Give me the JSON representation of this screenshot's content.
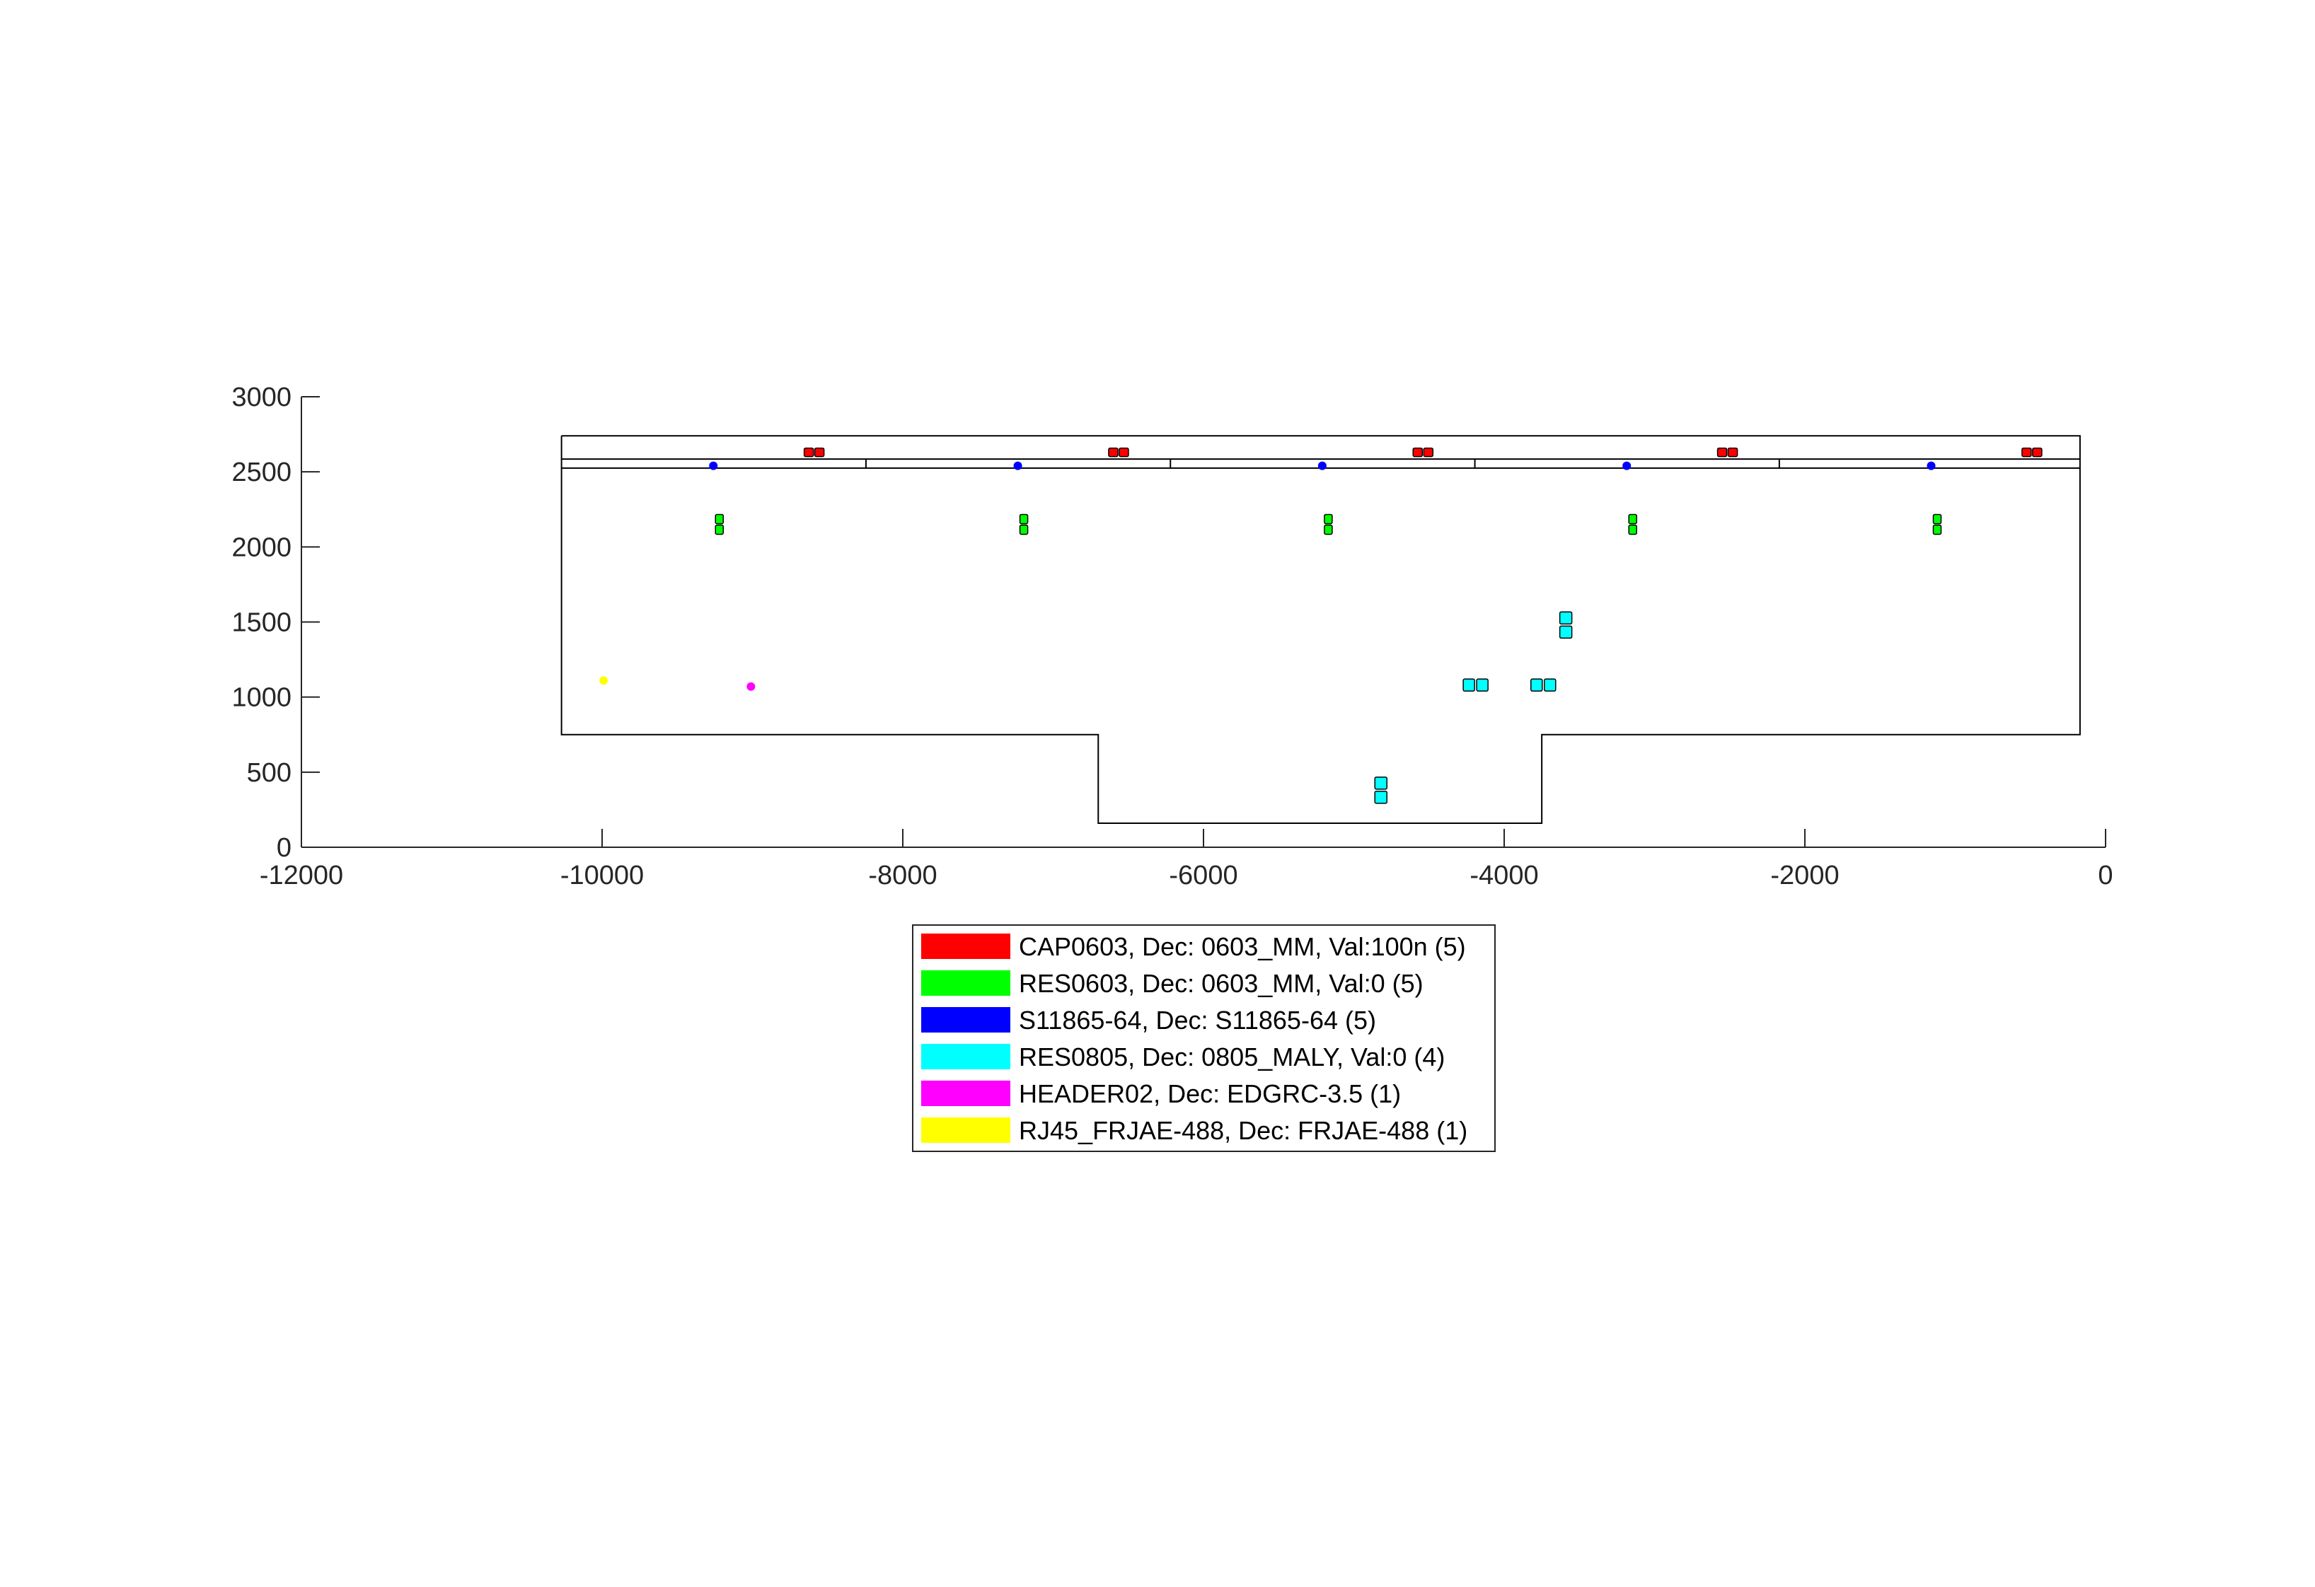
{
  "chart_data": {
    "type": "scatter",
    "title": "",
    "xlabel": "",
    "ylabel": "",
    "xlim": [
      -12000,
      0
    ],
    "ylim": [
      0,
      3000
    ],
    "xticks": [
      -12000,
      -10000,
      -8000,
      -6000,
      -4000,
      -2000,
      0
    ],
    "xtick_labels": [
      "-12000",
      "-10000",
      "-8000",
      "-6000",
      "-4000",
      "-2000",
      "0"
    ],
    "yticks": [
      0,
      500,
      1000,
      1500,
      2000,
      2500,
      3000
    ],
    "ytick_labels": [
      "0",
      "500",
      "1000",
      "1500",
      "2000",
      "2500",
      "3000"
    ],
    "grid": false,
    "legend_position": "below plot, centered",
    "board_outline": [
      [
        -10270,
        2740
      ],
      [
        -170,
        2740
      ],
      [
        -170,
        750
      ],
      [
        -3750,
        750
      ],
      [
        -3750,
        160
      ],
      [
        -6700,
        160
      ],
      [
        -6700,
        750
      ],
      [
        -10270,
        750
      ],
      [
        -10270,
        2740
      ]
    ],
    "board_lines": [
      [
        [
          -10270,
          2585
        ],
        [
          -170,
          2585
        ]
      ],
      [
        [
          -10270,
          2525
        ],
        [
          -170,
          2525
        ]
      ],
      [
        [
          -8245,
          2525
        ],
        [
          -8245,
          2585
        ]
      ],
      [
        [
          -6220,
          2525
        ],
        [
          -6220,
          2585
        ]
      ],
      [
        [
          -4195,
          2525
        ],
        [
          -4195,
          2585
        ]
      ],
      [
        [
          -2170,
          2525
        ],
        [
          -2170,
          2585
        ]
      ]
    ],
    "series": [
      {
        "name": "CAP0603, Dec: 0603_MM, Val:100n (5)",
        "color": "#ff0000",
        "marker": "pad-pair-horizontal",
        "points": [
          [
            -8590,
            2630
          ],
          [
            -6565,
            2630
          ],
          [
            -4540,
            2630
          ],
          [
            -2515,
            2630
          ],
          [
            -490,
            2630
          ]
        ]
      },
      {
        "name": "RES0603, Dec: 0603_MM, Val:0 (5)",
        "color": "#00ff00",
        "marker": "pad-pair-vertical",
        "points": [
          [
            -9220,
            2150
          ],
          [
            -7195,
            2150
          ],
          [
            -5170,
            2150
          ],
          [
            -3145,
            2150
          ],
          [
            -1120,
            2150
          ]
        ]
      },
      {
        "name": "S11865-64, Dec: S11865-64 (5)",
        "color": "#0000ff",
        "marker": "dot",
        "points": [
          [
            -9260,
            2540
          ],
          [
            -7235,
            2540
          ],
          [
            -5210,
            2540
          ],
          [
            -3185,
            2540
          ],
          [
            -1160,
            2540
          ]
        ]
      },
      {
        "name": "RES0805, Dec: 0805_MALY, Val:0 (4)",
        "color": "#00ffff",
        "marker": "pad-pair-mixed",
        "points": [
          [
            -4820,
            380,
            "v"
          ],
          [
            -4190,
            1080,
            "h"
          ],
          [
            -3740,
            1080,
            "h"
          ],
          [
            -3590,
            1480,
            "v"
          ]
        ]
      },
      {
        "name": "HEADER02, Dec: EDGRC-3.5 (1)",
        "color": "#ff00ff",
        "marker": "dot",
        "points": [
          [
            -9010,
            1070
          ]
        ]
      },
      {
        "name": "RJ45_FRJAE-488, Dec: FRJAE-488 (1)",
        "color": "#ffff00",
        "marker": "dot",
        "points": [
          [
            -9990,
            1110
          ]
        ]
      }
    ]
  }
}
